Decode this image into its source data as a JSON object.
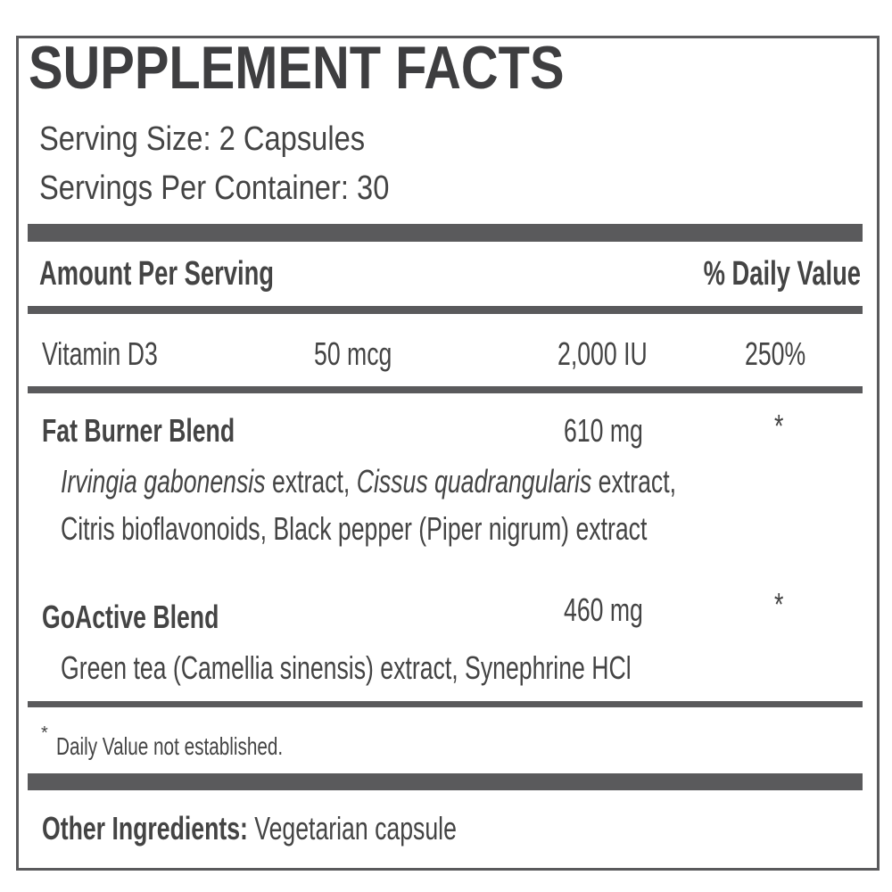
{
  "title": "SUPPLEMENT FACTS",
  "serving_size": "Serving Size: 2 Capsules",
  "servings_per_container": "Servings Per Container: 30",
  "header": {
    "amount": "Amount Per Serving",
    "daily_value": "% Daily Value"
  },
  "vitamin": {
    "name": "Vitamin D3",
    "amount": "50 mcg",
    "iu": "2,000 IU",
    "dv": "250%"
  },
  "blends": [
    {
      "name": "Fat Burner Blend",
      "amount": "610 mg",
      "dv": "*",
      "line1_italic1": "Irvingia gabonensis",
      "line1_text1": " extract, ",
      "line1_italic2": "Cissus quadrangularis",
      "line1_text2": " extract,",
      "line2": "Citris bioflavonoids, Black pepper (Piper nigrum) extract"
    },
    {
      "name": "GoActive Blend",
      "amount": "460 mg",
      "dv": "*",
      "line1": "Green tea (Camellia sinensis) extract, Synephrine HCl"
    }
  ],
  "footnote": {
    "mark": "*",
    "text": "Daily Value not established."
  },
  "other": {
    "label": "Other Ingredients:",
    "value": " Vegetarian capsule"
  },
  "colors": {
    "text": "#444444",
    "rules": "#5a5a5c"
  }
}
